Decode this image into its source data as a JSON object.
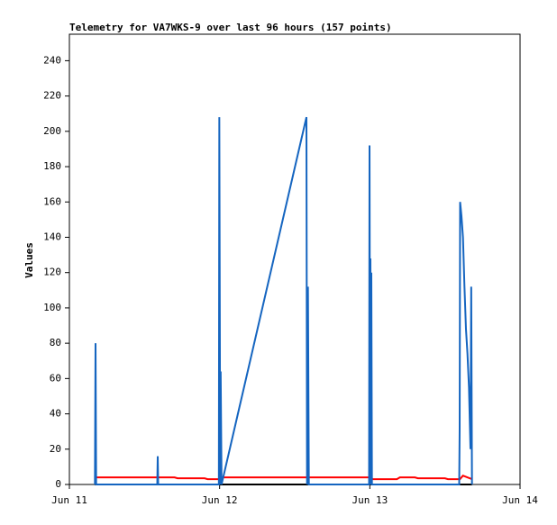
{
  "chart_data": {
    "type": "line",
    "title": "Telemetry for VA7WKS-9 over last 96 hours (157 points)",
    "y_label": "Values",
    "xlim": [
      11,
      14
    ],
    "xticks": [
      {
        "value": 11,
        "label": "Jun 11"
      },
      {
        "value": 12,
        "label": "Jun 12"
      },
      {
        "value": 13,
        "label": "Jun 13"
      },
      {
        "value": 14,
        "label": "Jun 14"
      }
    ],
    "ylim": [
      0,
      255
    ],
    "yticks": [
      0,
      20,
      40,
      60,
      80,
      100,
      120,
      140,
      160,
      180,
      200,
      220,
      240
    ],
    "series": [
      {
        "color": "#000000",
        "x": [
          11.17,
          13.68
        ],
        "values": [
          0,
          0
        ]
      },
      {
        "color": "#ff0000",
        "x": [
          11.17,
          11.7,
          11.72,
          11.9,
          11.92,
          12.0,
          12.02,
          13.0,
          13.02,
          13.18,
          13.2,
          13.3,
          13.32,
          13.5,
          13.52,
          13.6,
          13.62,
          13.68
        ],
        "values": [
          4,
          4,
          3.5,
          3.5,
          3,
          3,
          4,
          4,
          3,
          3,
          4,
          4,
          3.5,
          3.5,
          3,
          3,
          5,
          3
        ]
      },
      {
        "color": "#1565c0",
        "x": [
          11.17,
          11.174,
          11.178,
          11.585,
          11.588,
          11.591,
          11.995,
          11.998,
          12.004,
          12.007,
          12.013,
          12.578,
          12.582,
          12.588,
          12.594,
          12.995,
          12.998,
          13.002,
          13.004,
          13.008,
          13.01,
          13.014,
          13.595,
          13.598,
          13.601,
          13.61,
          13.62,
          13.63,
          13.64,
          13.65,
          13.66,
          13.67,
          13.675,
          13.68
        ],
        "values": [
          0,
          80,
          0,
          0,
          16,
          0,
          0,
          208,
          0,
          64,
          0,
          208,
          0,
          112,
          0,
          0,
          192,
          0,
          128,
          0,
          120,
          0,
          0,
          32,
          160,
          152,
          140,
          112,
          88,
          74,
          55,
          20,
          112,
          0
        ]
      }
    ]
  }
}
